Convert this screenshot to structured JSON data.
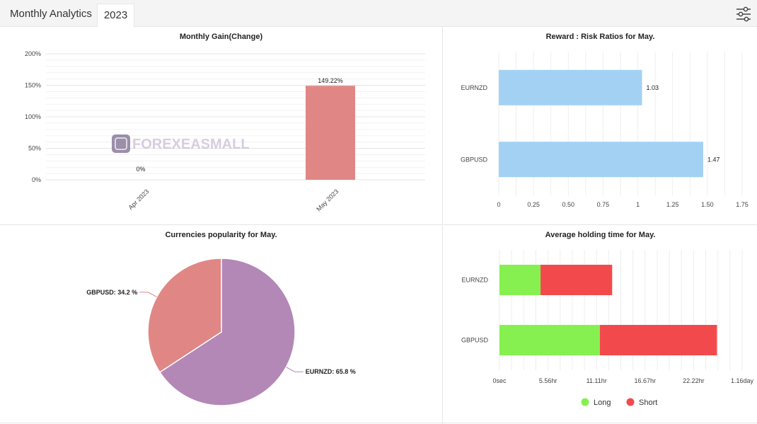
{
  "header": {
    "title": "Monthly Analytics",
    "year_tab": "2023",
    "settings_icon": "sliders-icon"
  },
  "watermark": "FOREXEASMALL",
  "chart_data": [
    {
      "type": "bar",
      "title": "Monthly Gain(Change)",
      "categories": [
        "Apr 2023",
        "May 2023"
      ],
      "values": [
        0,
        149.22
      ],
      "value_labels": [
        "0%",
        "149.22%"
      ],
      "yticks": [
        "0%",
        "50%",
        "100%",
        "150%",
        "200%"
      ],
      "ylim": [
        0,
        200
      ],
      "color": "#e08785",
      "grid": true
    },
    {
      "type": "bar",
      "orientation": "horizontal",
      "title": "Reward : Risk Ratios for May.",
      "categories": [
        "EURNZD",
        "GBPUSD"
      ],
      "values": [
        1.03,
        1.47
      ],
      "value_labels": [
        "1.03",
        "1.47"
      ],
      "xticks": [
        "0",
        "0.25",
        "0.50",
        "0.75",
        "1",
        "1.25",
        "1.50",
        "1.75"
      ],
      "xlim": [
        0,
        1.75
      ],
      "color": "#a3d1f4",
      "grid": true
    },
    {
      "type": "pie",
      "title": "Currencies popularity for May.",
      "slices": [
        {
          "label": "EURNZD",
          "value": 65.8,
          "text": "EURNZD: 65.8 %",
          "color": "#b387b6"
        },
        {
          "label": "GBPUSD",
          "value": 34.2,
          "text": "GBPUSD: 34.2 %",
          "color": "#e08785"
        }
      ]
    },
    {
      "type": "bar",
      "orientation": "horizontal",
      "stacked": true,
      "title": "Average holding time for May.",
      "categories": [
        "EURNZD",
        "GBPUSD"
      ],
      "xticks": [
        "0sec",
        "5.56hr",
        "11.11hr",
        "16.67hr",
        "22.22hr",
        "1.16day"
      ],
      "xlim": [
        0,
        27.78
      ],
      "series": [
        {
          "name": "Long",
          "values": [
            4.7,
            11.5
          ],
          "color": "#86f050"
        },
        {
          "name": "Short",
          "values": [
            8.2,
            13.4
          ],
          "color": "#f24a4c"
        }
      ],
      "legend": "bottom",
      "grid": true
    }
  ]
}
